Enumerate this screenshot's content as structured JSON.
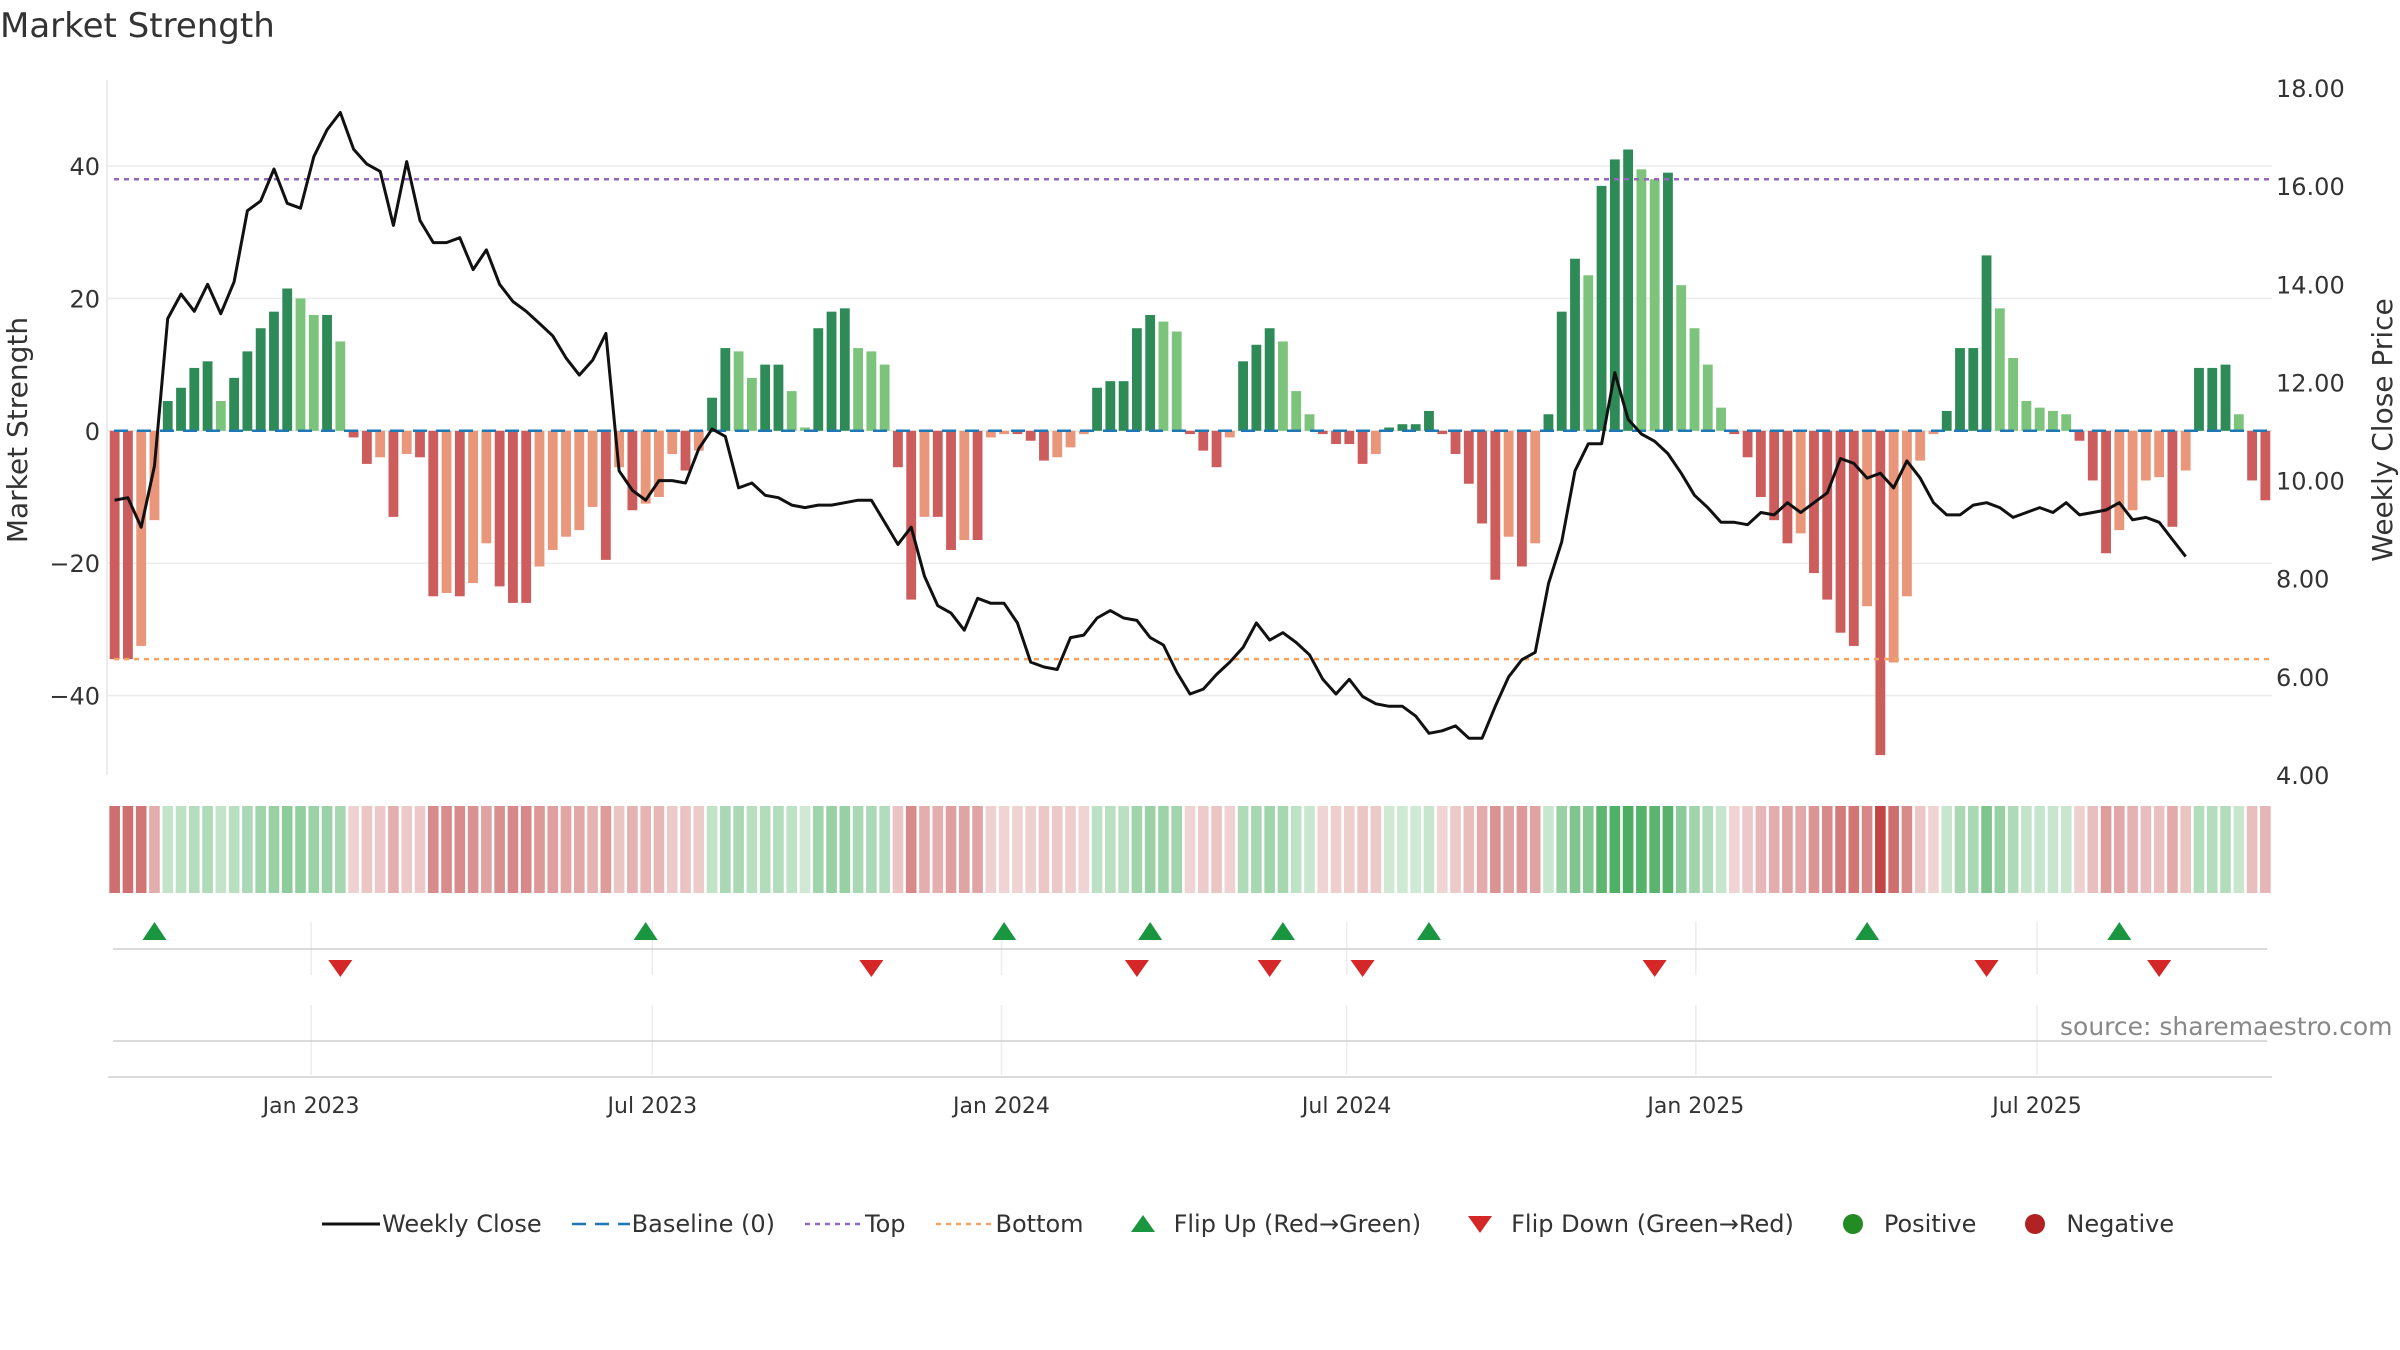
{
  "chart_data": {
    "type": "bar",
    "title": "Market Strength",
    "ylabel": "Market Strength",
    "y2label": "Weekly Close Price",
    "xlabel": "",
    "ylim": [
      -52,
      53
    ],
    "y2lim": [
      4.0,
      18.0
    ],
    "yticks": [
      40,
      20,
      0,
      -20,
      -40
    ],
    "yticklabels": [
      "40",
      "20",
      "0",
      "−20",
      "−40"
    ],
    "y2ticks": [
      18,
      16,
      14,
      12,
      10,
      8,
      6,
      4
    ],
    "y2ticklabels": [
      "18.00",
      "16.00",
      "14.00",
      "12.00",
      "10.00",
      "8.00",
      "6.00",
      "4.00"
    ],
    "xticks": [
      15.3,
      41.0,
      67.3,
      93.3,
      119.6,
      145.3
    ],
    "xticklabels": [
      "Jan 2023",
      "Jul 2023",
      "Jan 2024",
      "Jul 2024",
      "Jan 2025",
      "Jul 2025"
    ],
    "top_level": 38,
    "bottom_level": -34.5,
    "baseline": 0,
    "series": [
      {
        "name": "Market Strength",
        "values": [
          -34.5,
          -34.5,
          -32.5,
          -13.5,
          4.5,
          6.5,
          9.5,
          10.5,
          4.5,
          8.0,
          12.0,
          15.5,
          18.0,
          21.5,
          20.0,
          17.5,
          17.5,
          13.5,
          -1.0,
          -5.0,
          -4.0,
          -13.0,
          -3.5,
          -4.0,
          -25.0,
          -24.5,
          -25.0,
          -23.0,
          -17.0,
          -23.5,
          -26.0,
          -26.0,
          -20.5,
          -18.0,
          -16.0,
          -15.0,
          -11.5,
          -19.5,
          -5.5,
          -12.0,
          -11.0,
          -10.0,
          -3.5,
          -6.0,
          -3.0,
          5.0,
          12.5,
          12.0,
          8.0,
          10.0,
          10.0,
          6.0,
          0.5,
          15.5,
          18.0,
          18.5,
          12.5,
          12.0,
          10.0,
          -5.5,
          -25.5,
          -13.0,
          -13.0,
          -18.0,
          -16.5,
          -16.5,
          -1.0,
          -0.5,
          -0.5,
          -1.5,
          -4.5,
          -4.0,
          -2.5,
          -0.5,
          6.5,
          7.5,
          7.5,
          15.5,
          17.5,
          16.5,
          15.0,
          -0.5,
          -3.0,
          -5.5,
          -1.0,
          10.5,
          13.0,
          15.5,
          13.5,
          6.0,
          2.5,
          -0.5,
          -2.0,
          -2.0,
          -5.0,
          -3.5,
          0.5,
          1.0,
          1.0,
          3.0,
          -0.5,
          -3.5,
          -8.0,
          -14.0,
          -22.5,
          -16.0,
          -20.5,
          -17.0,
          2.5,
          18.0,
          26.0,
          23.5,
          37.0,
          41.0,
          42.5,
          39.5,
          38.0,
          39.0,
          22.0,
          15.5,
          10.0,
          3.5,
          -0.5,
          -4.0,
          -10.0,
          -13.5,
          -17.0,
          -15.5,
          -21.5,
          -25.5,
          -30.5,
          -32.5,
          -26.5,
          -49.0,
          -35.0,
          -25.0,
          -4.5,
          -0.5,
          3.0,
          12.5,
          12.5,
          26.5,
          18.5,
          11.0,
          4.5,
          3.5,
          3.0,
          2.5,
          -1.5,
          -7.5,
          -18.5,
          -15.0,
          -12.0,
          -7.5,
          -7.0,
          -14.5,
          -6.0,
          9.5,
          9.5,
          10.0,
          2.5,
          -7.5,
          -10.5
        ]
      },
      {
        "name": "Weekly Close",
        "values": [
          9.6,
          9.65,
          9.05,
          10.3,
          13.3,
          13.8,
          13.45,
          14.0,
          13.4,
          14.05,
          15.5,
          15.7,
          16.35,
          15.65,
          15.55,
          16.6,
          17.15,
          17.5,
          16.75,
          16.45,
          16.3,
          15.2,
          16.5,
          15.3,
          14.85,
          14.85,
          14.95,
          14.3,
          14.7,
          14.0,
          13.65,
          13.45,
          13.2,
          12.95,
          12.5,
          12.15,
          12.45,
          13.0,
          10.2,
          9.8,
          9.6,
          10.0,
          10.0,
          9.95,
          10.65,
          11.05,
          10.9,
          9.85,
          9.95,
          9.7,
          9.65,
          9.5,
          9.45,
          9.5,
          9.5,
          9.55,
          9.6,
          9.6,
          9.15,
          8.7,
          9.05,
          8.05,
          7.45,
          7.3,
          6.95,
          7.6,
          7.5,
          7.5,
          7.1,
          6.3,
          6.2,
          6.15,
          6.8,
          6.85,
          7.2,
          7.35,
          7.2,
          7.15,
          6.8,
          6.65,
          6.1,
          5.65,
          5.75,
          6.05,
          6.3,
          6.6,
          7.1,
          6.75,
          6.9,
          6.7,
          6.45,
          5.95,
          5.65,
          5.95,
          5.6,
          5.45,
          5.4,
          5.4,
          5.2,
          4.85,
          4.9,
          5.0,
          4.75,
          4.75,
          5.4,
          6.0,
          6.35,
          6.5,
          7.9,
          8.75,
          10.2,
          10.75,
          10.75,
          12.2,
          11.25,
          10.95,
          10.8,
          10.55,
          10.15,
          9.7,
          9.45,
          9.15,
          9.15,
          9.1,
          9.35,
          9.3,
          9.55,
          9.35,
          9.55,
          9.75,
          10.45,
          10.35,
          10.05,
          10.15,
          9.85,
          10.4,
          10.05,
          9.55,
          9.3,
          9.3,
          9.5,
          9.55,
          9.45,
          9.25,
          9.35,
          9.45,
          9.35,
          9.55,
          9.3,
          9.35,
          9.4,
          9.55,
          9.2,
          9.25,
          9.15,
          8.8,
          8.45
        ]
      }
    ],
    "flip_up": [
      3.5,
      40.5,
      67.5,
      78.5,
      88.5,
      99.5,
      132.5,
      151.5
    ],
    "flip_down": [
      17.5,
      57.5,
      77.5,
      87.5,
      94.5,
      116.5,
      141.5,
      154.5
    ],
    "legend": [
      {
        "label": "Weekly Close",
        "symbol": "line"
      },
      {
        "label": "Baseline (0)",
        "symbol": "dash"
      },
      {
        "label": "Top",
        "symbol": "dot-purple"
      },
      {
        "label": "Bottom",
        "symbol": "dot-orange"
      },
      {
        "label": "Flip Up (Red→Green)",
        "symbol": "tri-up"
      },
      {
        "label": "Flip Down (Green→Red)",
        "symbol": "tri-down"
      },
      {
        "label": "Positive",
        "symbol": "circle-green"
      },
      {
        "label": "Negative",
        "symbol": "circle-red"
      }
    ],
    "source": "source: sharemaestro.com"
  },
  "colors": {
    "pos_strong": "#2e8b57",
    "pos_weak": "#7cc37c",
    "neg_strong": "#cd5c5c",
    "neg_weak": "#e9967a",
    "line": "#111111",
    "baseline": "#1f77b4",
    "top": "#9467bd",
    "bottom": "#f4a460",
    "flip_up": "#1a9641",
    "flip_down": "#d62728",
    "positive": "#228b22",
    "negative": "#b22222"
  }
}
